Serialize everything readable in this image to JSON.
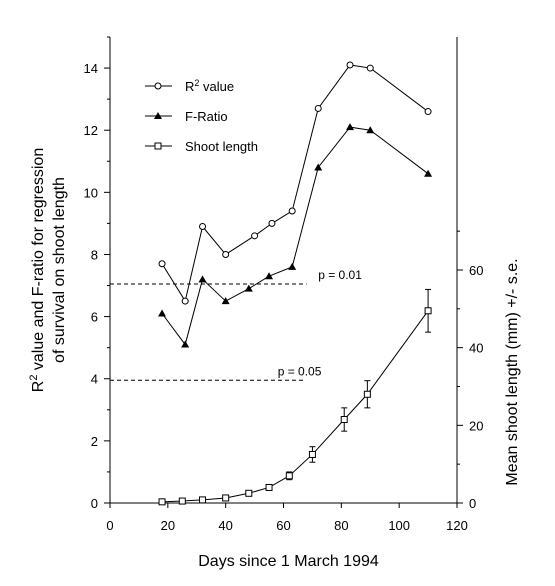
{
  "chart_data": {
    "type": "line",
    "title": "",
    "xlabel": "Days since 1 March 1994",
    "ylabel_left_line1": "R",
    "ylabel_left_sup": "2",
    "ylabel_left_line1_rest": " value and F-ratio for regression",
    "ylabel_left_line2": "of survival on shoot length",
    "ylabel_right": "Mean shoot length (mm) +/- s.e.",
    "xlim": [
      0,
      120
    ],
    "ylim_left": [
      0,
      15
    ],
    "ylim_right": [
      0,
      120
    ],
    "x_ticks": [
      "0",
      "20",
      "40",
      "60",
      "80",
      "100",
      "120"
    ],
    "y_left_ticks": [
      "0",
      "2",
      "4",
      "6",
      "8",
      "10",
      "12",
      "14"
    ],
    "y_right_ticks": [
      "0",
      "20",
      "40",
      "60"
    ],
    "grid": false,
    "legend_position": "top-left",
    "series": [
      {
        "name": "R² value",
        "legend_main": "R",
        "legend_sup": "2",
        "legend_rest": " value",
        "axis": "left",
        "marker": "circle",
        "x": [
          18,
          26,
          32,
          40,
          50,
          56,
          63,
          72,
          83,
          90,
          110
        ],
        "y": [
          7.7,
          6.5,
          8.9,
          8.0,
          8.6,
          9.0,
          9.4,
          12.7,
          14.1,
          14.0,
          12.6
        ]
      },
      {
        "name": "F-Ratio",
        "axis": "left",
        "marker": "triangle",
        "x": [
          18,
          26,
          32,
          40,
          48,
          55,
          63,
          72,
          83,
          90,
          110
        ],
        "y": [
          6.1,
          5.1,
          7.2,
          6.5,
          6.9,
          7.3,
          7.6,
          10.8,
          12.1,
          12.0,
          10.6
        ]
      },
      {
        "name": "Shoot length",
        "axis": "right",
        "marker": "square",
        "x": [
          18,
          25,
          32,
          40,
          48,
          55,
          62,
          70,
          81,
          89,
          110
        ],
        "y": [
          0.3,
          0.5,
          0.8,
          1.3,
          2.5,
          4.0,
          7.0,
          12.5,
          21.5,
          28.0,
          49.5
        ],
        "err": [
          0,
          0,
          0,
          0,
          0,
          0.5,
          1.0,
          2.0,
          3.0,
          3.5,
          5.5
        ]
      }
    ],
    "reference_lines": [
      {
        "label": "p = 0.01",
        "y": 7.05,
        "x_start": 0,
        "x_end": 68,
        "label_x": 72
      },
      {
        "label": "p = 0.05",
        "y": 3.95,
        "x_start": 0,
        "x_end": 67,
        "label_x": 58
      }
    ]
  }
}
